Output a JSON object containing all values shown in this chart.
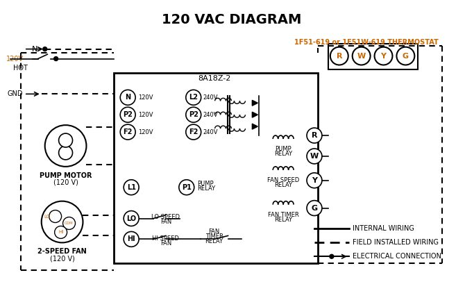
{
  "title": "120 VAC DIAGRAM",
  "title_color": "#000000",
  "title_fontsize": 14,
  "bg_color": "#ffffff",
  "text_color": "#000000",
  "orange_color": "#cc6600",
  "blue_color": "#0000cc",
  "legend_items": [
    {
      "label": "INTERNAL WIRING",
      "style": "solid"
    },
    {
      "label": "FIELD INSTALLED WIRING",
      "style": "dashed"
    },
    {
      "label": "ELECTRICAL CONNECTION",
      "style": "dot_arrow"
    }
  ],
  "thermostat_label": "1F51-619 or 1F51W-619 THERMOSTAT",
  "control_box_label": "8A18Z-2",
  "terminals": [
    "R",
    "W",
    "Y",
    "G"
  ],
  "terminal_colors": [
    "#cc6600",
    "#cc6600",
    "#cc6600",
    "#cc6600"
  ]
}
